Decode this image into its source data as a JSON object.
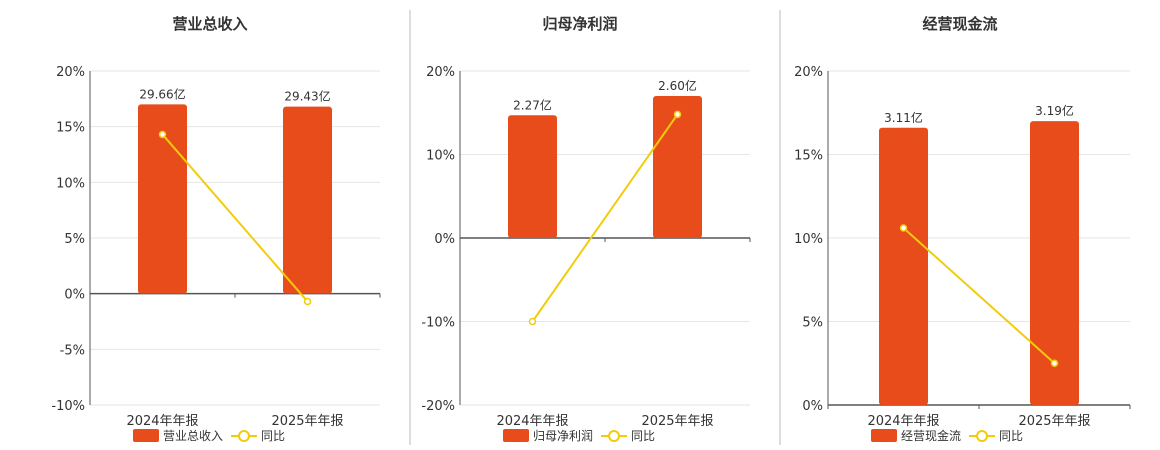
{
  "colors": {
    "bar": "#E84C1A",
    "line": "#F2CC0C",
    "axis": "#555555",
    "grid": "#E6E6E6",
    "divider": "#BBBBBB",
    "text": "#333333"
  },
  "legend": {
    "line_label": "同比"
  },
  "chart_data": [
    {
      "type": "bar",
      "title": "营业总收入",
      "categories": [
        "2024年年报",
        "2025年年报"
      ],
      "y_ticks": [
        "20%",
        "15%",
        "10%",
        "5%",
        "0%",
        "-5%",
        "-10%"
      ],
      "ylim": [
        -10,
        20
      ],
      "y_unit": "%",
      "series": [
        {
          "name": "营业总收入",
          "kind": "bar",
          "values": [
            17.0,
            16.8
          ],
          "labels": [
            "29.66亿",
            "29.43亿"
          ]
        },
        {
          "name": "同比",
          "kind": "line",
          "values": [
            14.3,
            -0.7
          ]
        }
      ]
    },
    {
      "type": "bar",
      "title": "归母净利润",
      "categories": [
        "2024年年报",
        "2025年年报"
      ],
      "y_ticks": [
        "20%",
        "10%",
        "0%",
        "-10%",
        "-20%"
      ],
      "ylim": [
        -20,
        20
      ],
      "y_unit": "%",
      "series": [
        {
          "name": "归母净利润",
          "kind": "bar",
          "values": [
            14.7,
            17.0
          ],
          "labels": [
            "2.27亿",
            "2.60亿"
          ]
        },
        {
          "name": "同比",
          "kind": "line",
          "values": [
            -10.0,
            14.8
          ]
        }
      ]
    },
    {
      "type": "bar",
      "title": "经营现金流",
      "categories": [
        "2024年年报",
        "2025年年报"
      ],
      "y_ticks": [
        "20%",
        "15%",
        "10%",
        "5%",
        "0%"
      ],
      "ylim": [
        0,
        20
      ],
      "y_unit": "%",
      "series": [
        {
          "name": "经营现金流",
          "kind": "bar",
          "values": [
            16.6,
            17.0
          ],
          "labels": [
            "3.11亿",
            "3.19亿"
          ]
        },
        {
          "name": "同比",
          "kind": "line",
          "values": [
            10.6,
            2.5
          ]
        }
      ]
    }
  ]
}
